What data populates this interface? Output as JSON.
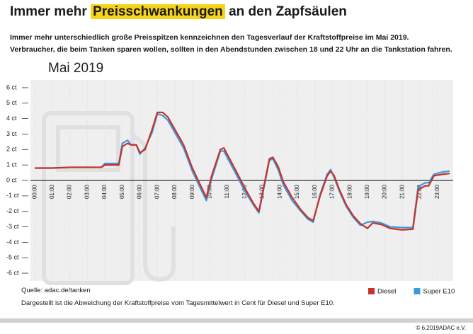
{
  "title": [
    "Immer mehr",
    "Preisschwankungen",
    "an den Zapfsäulen"
  ],
  "subtitle": [
    "Immer mehr unterschiedlich große Preisspitzen kennzeichnen den Tagesverlauf der Kraftstoffpreise im Mai 2019.",
    "Verbraucher, die beim Tanken sparen wollen, sollten in den Abendstunden zwischen 18 und 22 Uhr an die Tankstation fahren."
  ],
  "chart_data": {
    "type": "line",
    "title": "Mai 2019",
    "x": [
      0,
      1,
      2,
      3,
      3.8,
      4,
      4.8,
      5,
      5.3,
      5.5,
      5.8,
      6,
      6.3,
      6.7,
      7,
      7.3,
      7.6,
      8,
      8.5,
      9,
      9.5,
      9.8,
      10.1,
      10.6,
      10.8,
      11.5,
      12,
      12.5,
      12.8,
      13.4,
      13.6,
      13.9,
      14.2,
      14.7,
      15.2,
      15.6,
      15.9,
      16.3,
      16.7,
      16.9,
      17.1,
      17.4,
      17.8,
      18.2,
      18.6,
      19,
      19.3,
      19.8,
      20.3,
      21,
      21.6,
      21.9,
      22.3,
      22.5,
      22.8,
      23.3,
      23.7
    ],
    "series": [
      {
        "name": "Diesel",
        "color": "#c8312b",
        "values": [
          0.8,
          0.8,
          0.85,
          0.85,
          0.85,
          1.0,
          1.0,
          2.2,
          2.4,
          2.3,
          2.3,
          1.8,
          2.0,
          3.3,
          4.4,
          4.4,
          4.1,
          3.3,
          2.3,
          0.8,
          -0.4,
          -1.1,
          0.3,
          2.0,
          2.1,
          0.6,
          -0.5,
          -1.5,
          -2.0,
          1.4,
          1.5,
          0.9,
          -0.1,
          -1.1,
          -1.9,
          -2.4,
          -2.6,
          -1.0,
          0.3,
          0.6,
          0.3,
          -0.6,
          -1.6,
          -2.3,
          -2.8,
          -3.1,
          -2.75,
          -2.85,
          -3.1,
          -3.2,
          -3.15,
          -0.6,
          -0.35,
          -0.35,
          0.3,
          0.4,
          0.45
        ]
      },
      {
        "name": "Super E10",
        "color": "#3a9ad9",
        "values": [
          0.8,
          0.8,
          0.85,
          0.85,
          0.85,
          1.1,
          1.1,
          2.4,
          2.6,
          2.3,
          2.3,
          1.7,
          2.1,
          3.1,
          4.3,
          4.2,
          3.9,
          3.1,
          2.1,
          0.6,
          -0.6,
          -1.3,
          0.1,
          1.9,
          1.9,
          0.4,
          -0.7,
          -1.6,
          -2.1,
          1.3,
          1.4,
          0.7,
          -0.3,
          -1.3,
          -2.0,
          -2.5,
          -2.7,
          -0.9,
          0.4,
          0.7,
          0.2,
          -0.7,
          -1.7,
          -2.4,
          -2.9,
          -2.7,
          -2.65,
          -2.75,
          -3.0,
          -3.05,
          -3.05,
          -0.4,
          -0.15,
          -0.15,
          0.4,
          0.55,
          0.6
        ]
      }
    ],
    "xlim": [
      -0.25,
      23.9
    ],
    "xticks": [
      {
        "value": 0,
        "label": "00:00"
      },
      {
        "value": 1,
        "label": "01:00"
      },
      {
        "value": 2,
        "label": "02:00"
      },
      {
        "value": 3,
        "label": "03:00"
      },
      {
        "value": 4,
        "label": "04:00"
      },
      {
        "value": 5,
        "label": "05:00"
      },
      {
        "value": 6,
        "label": "06:00"
      },
      {
        "value": 7,
        "label": "07:00"
      },
      {
        "value": 8,
        "label": "08:00"
      },
      {
        "value": 9,
        "label": "09:00"
      },
      {
        "value": 10,
        "label": "10:00"
      },
      {
        "value": 11,
        "label": "11:00"
      },
      {
        "value": 12,
        "label": "12:00"
      },
      {
        "value": 13,
        "label": "13:00"
      },
      {
        "value": 14,
        "label": "14:00"
      },
      {
        "value": 15,
        "label": "15:00"
      },
      {
        "value": 16,
        "label": "16:00"
      },
      {
        "value": 17,
        "label": "17:00"
      },
      {
        "value": 18,
        "label": "18:00"
      },
      {
        "value": 19,
        "label": "19:00"
      },
      {
        "value": 20,
        "label": "20:00"
      },
      {
        "value": 21,
        "label": "21:00"
      },
      {
        "value": 22,
        "label": "22:00"
      },
      {
        "value": 23,
        "label": "23:00"
      }
    ],
    "ylim": [
      -6.5,
      6.5
    ],
    "yticks": [
      {
        "value": 6,
        "label": "6 ct"
      },
      {
        "value": 5,
        "label": "5 ct"
      },
      {
        "value": 4,
        "label": "4 ct"
      },
      {
        "value": 3,
        "label": "3 ct"
      },
      {
        "value": 2,
        "label": "2 ct"
      },
      {
        "value": 1,
        "label": "1 ct"
      },
      {
        "value": 0,
        "label": "0 ct"
      },
      {
        "value": -1,
        "label": "-1 ct"
      },
      {
        "value": -2,
        "label": "-2 ct"
      },
      {
        "value": -3,
        "label": "-3 ct"
      },
      {
        "value": -4,
        "label": "-4 ct"
      },
      {
        "value": -5,
        "label": "-5 ct"
      },
      {
        "value": -6,
        "label": "-6 ct"
      }
    ],
    "legend": "bottom-right"
  },
  "source": "Quelle: adac.de/tanken",
  "note": "Dargestellt ist die Abweichung der Kraftstoffpreise vom Tagesmittelwert in Cent für Diesel und Super E10.",
  "copyright": "© 6.2019ADAC e.V."
}
